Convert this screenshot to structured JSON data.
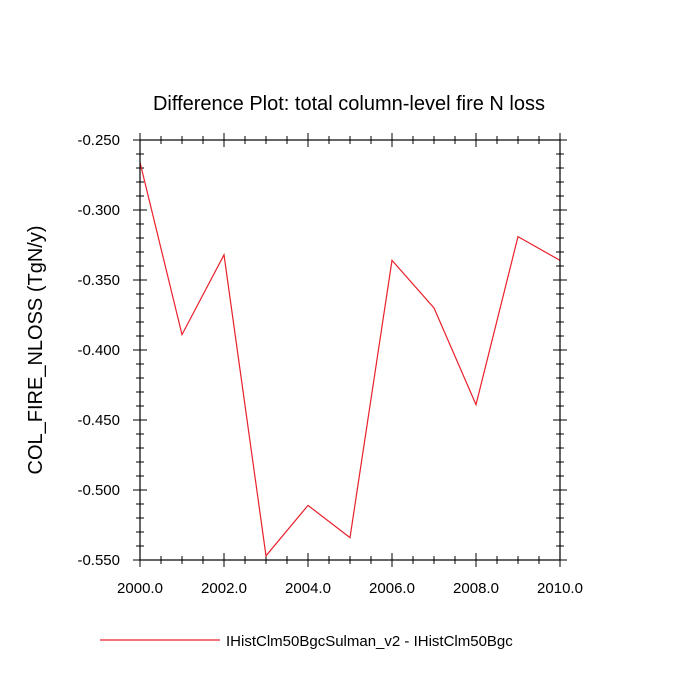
{
  "chart_data": {
    "type": "line",
    "title": "Difference Plot: total column-level fire N loss",
    "xlabel": "",
    "ylabel": "COL_FIRE_NLOSS  (TgN/y)",
    "xlim": [
      2000,
      2010
    ],
    "ylim": [
      -0.55,
      -0.25
    ],
    "x_ticks": [
      2000,
      2002,
      2004,
      2006,
      2008,
      2010
    ],
    "x_tick_labels": [
      "2000.0",
      "2002.0",
      "2004.0",
      "2006.0",
      "2008.0",
      "2010.0"
    ],
    "y_ticks": [
      -0.25,
      -0.3,
      -0.35,
      -0.4,
      -0.45,
      -0.5,
      -0.55
    ],
    "y_tick_labels": [
      "-0.250",
      "-0.300",
      "-0.350",
      "-0.400",
      "-0.450",
      "-0.500",
      "-0.550"
    ],
    "grid": false,
    "legend_position": "bottom",
    "series": [
      {
        "name": "IHistClm50BgcSulman_v2 - IHistClm50Bgc",
        "color": "#e8202a",
        "x": [
          2000,
          2001,
          2002,
          2003,
          2004,
          2005,
          2006,
          2007,
          2008,
          2009,
          2010
        ],
        "y": [
          -0.266,
          -0.389,
          -0.332,
          -0.547,
          -0.511,
          -0.534,
          -0.336,
          -0.37,
          -0.439,
          -0.319,
          -0.336
        ]
      }
    ]
  }
}
